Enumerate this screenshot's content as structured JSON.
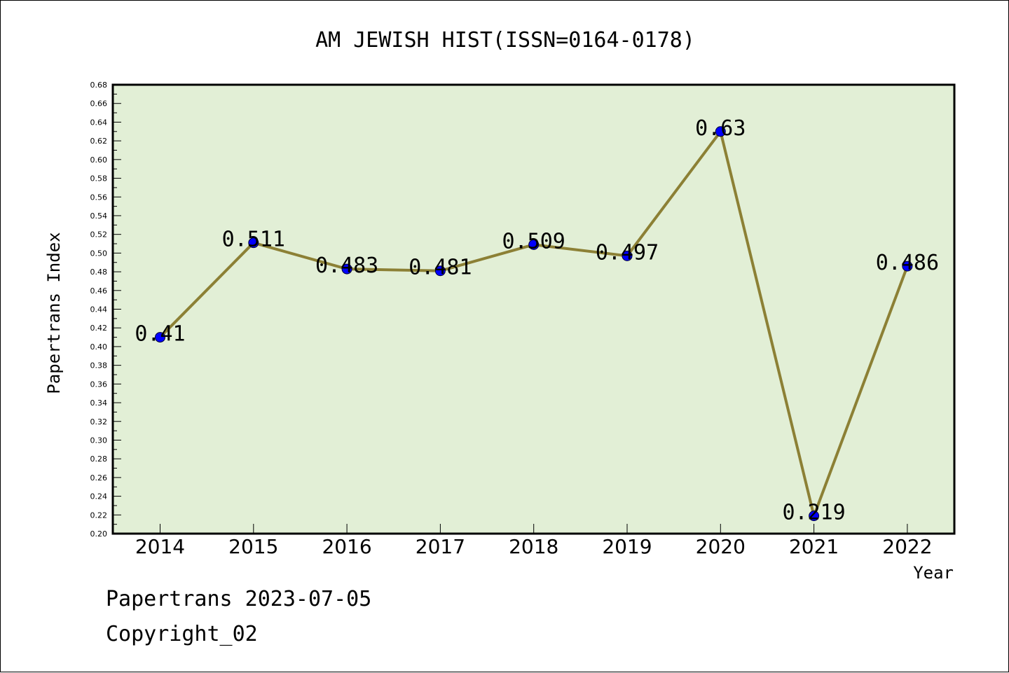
{
  "colors": {
    "plot_background": "#e2efd6",
    "line": "#8c8035",
    "marker": "#0000ff",
    "axis": "#000000"
  },
  "chart_data": {
    "type": "line",
    "title": "AM JEWISH HIST(ISSN=0164-0178)",
    "xlabel": "Year",
    "ylabel": "Papertrans Index",
    "categories": [
      "2014",
      "2015",
      "2016",
      "2017",
      "2018",
      "2019",
      "2020",
      "2021",
      "2022"
    ],
    "series": [
      {
        "values": [
          0.41,
          0.511,
          0.483,
          0.481,
          0.509,
          0.497,
          0.63,
          0.219,
          0.486
        ],
        "labels": [
          "0.41",
          "0.511",
          "0.483",
          "0.481",
          "0.509",
          "0.497",
          "0.63",
          "0.219",
          "0.486"
        ]
      }
    ],
    "ylim": [
      0.2,
      0.68
    ],
    "yticks": [
      "0.20",
      "0.22",
      "0.24",
      "0.26",
      "0.28",
      "0.30",
      "0.32",
      "0.34",
      "0.36",
      "0.38",
      "0.40",
      "0.42",
      "0.44",
      "0.46",
      "0.48",
      "0.50",
      "0.52",
      "0.54",
      "0.56",
      "0.58",
      "0.60",
      "0.62",
      "0.64",
      "0.66",
      "0.68"
    ],
    "grid": false,
    "legend": "none"
  },
  "footer": {
    "line1": "Papertrans 2023-07-05",
    "line2": "Copyright_02"
  }
}
